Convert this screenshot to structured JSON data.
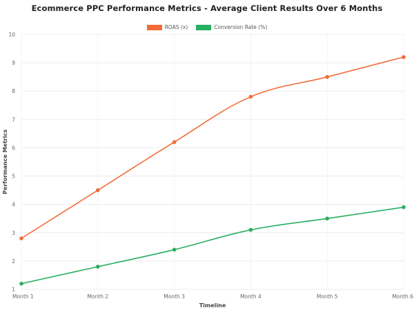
{
  "chart_data": {
    "type": "line",
    "title": "Ecommerce PPC Performance Metrics - Average Client Results Over 6 Months",
    "xlabel": "Timeline",
    "ylabel": "Performance Metrics",
    "categories": [
      "Month 1",
      "Month 2",
      "Month 3",
      "Month 4",
      "Month 5",
      "Month 6"
    ],
    "ylim": [
      1,
      10
    ],
    "yticks": [
      1,
      2,
      3,
      4,
      5,
      6,
      7,
      8,
      9,
      10
    ],
    "grid": true,
    "legend_position": "top-center",
    "series": [
      {
        "name": "ROAS (x)",
        "color": "#f26b38",
        "values": [
          2.8,
          4.5,
          6.2,
          7.8,
          8.5,
          9.2
        ]
      },
      {
        "name": "Conversion Rate (%)",
        "color": "#27ae60",
        "values": [
          1.2,
          1.8,
          2.4,
          3.1,
          3.5,
          3.9
        ]
      }
    ]
  }
}
